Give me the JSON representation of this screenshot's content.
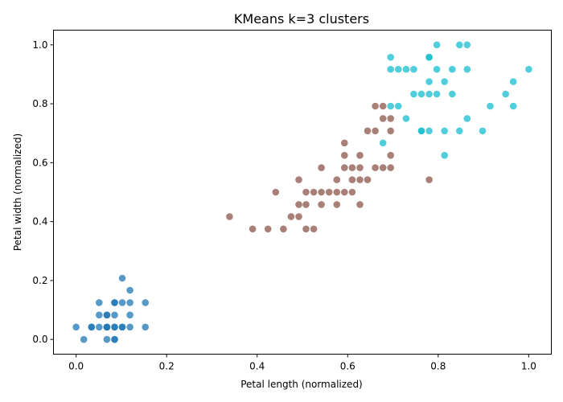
{
  "chart_data": {
    "type": "scatter",
    "title": "KMeans k=3 clusters",
    "xlabel": "Petal length (normalized)",
    "ylabel": "Petal width (normalized)",
    "xlim": [
      -0.05,
      1.05
    ],
    "ylim": [
      -0.05,
      1.05
    ],
    "xticks": [
      "0.0",
      "0.2",
      "0.4",
      "0.6",
      "0.8",
      "1.0"
    ],
    "yticks": [
      "0.0",
      "0.2",
      "0.4",
      "0.6",
      "0.8",
      "1.0"
    ],
    "grid": false,
    "legend": "none",
    "marker_opacity": 0.75,
    "series": [
      {
        "color": "#1f77b4",
        "points": [
          [
            0.0,
            0.042
          ],
          [
            0.017,
            0.0
          ],
          [
            0.034,
            0.042
          ],
          [
            0.034,
            0.042
          ],
          [
            0.051,
            0.042
          ],
          [
            0.051,
            0.083
          ],
          [
            0.051,
            0.125
          ],
          [
            0.068,
            0.0
          ],
          [
            0.068,
            0.042
          ],
          [
            0.068,
            0.042
          ],
          [
            0.068,
            0.083
          ],
          [
            0.068,
            0.083
          ],
          [
            0.085,
            0.0
          ],
          [
            0.085,
            0.042
          ],
          [
            0.085,
            0.042
          ],
          [
            0.085,
            0.083
          ],
          [
            0.085,
            0.125
          ],
          [
            0.085,
            0.125
          ],
          [
            0.085,
            0.0
          ],
          [
            0.102,
            0.042
          ],
          [
            0.102,
            0.125
          ],
          [
            0.102,
            0.208
          ],
          [
            0.102,
            0.042
          ],
          [
            0.119,
            0.042
          ],
          [
            0.119,
            0.083
          ],
          [
            0.119,
            0.125
          ],
          [
            0.119,
            0.167
          ],
          [
            0.153,
            0.042
          ],
          [
            0.153,
            0.125
          ],
          [
            0.068,
            0.042
          ]
        ]
      },
      {
        "color": "#8c564b",
        "points": [
          [
            0.339,
            0.417
          ],
          [
            0.39,
            0.375
          ],
          [
            0.424,
            0.375
          ],
          [
            0.441,
            0.5
          ],
          [
            0.458,
            0.375
          ],
          [
            0.475,
            0.417
          ],
          [
            0.492,
            0.417
          ],
          [
            0.492,
            0.458
          ],
          [
            0.492,
            0.542
          ],
          [
            0.508,
            0.375
          ],
          [
            0.508,
            0.458
          ],
          [
            0.508,
            0.5
          ],
          [
            0.525,
            0.375
          ],
          [
            0.525,
            0.5
          ],
          [
            0.542,
            0.458
          ],
          [
            0.542,
            0.5
          ],
          [
            0.542,
            0.583
          ],
          [
            0.559,
            0.5
          ],
          [
            0.576,
            0.458
          ],
          [
            0.576,
            0.5
          ],
          [
            0.576,
            0.542
          ],
          [
            0.593,
            0.5
          ],
          [
            0.593,
            0.583
          ],
          [
            0.593,
            0.625
          ],
          [
            0.593,
            0.667
          ],
          [
            0.61,
            0.5
          ],
          [
            0.61,
            0.542
          ],
          [
            0.61,
            0.583
          ],
          [
            0.627,
            0.458
          ],
          [
            0.627,
            0.542
          ],
          [
            0.627,
            0.583
          ],
          [
            0.627,
            0.625
          ],
          [
            0.644,
            0.542
          ],
          [
            0.644,
            0.708
          ],
          [
            0.661,
            0.583
          ],
          [
            0.661,
            0.708
          ],
          [
            0.661,
            0.792
          ],
          [
            0.678,
            0.583
          ],
          [
            0.678,
            0.75
          ],
          [
            0.678,
            0.792
          ],
          [
            0.695,
            0.583
          ],
          [
            0.695,
            0.625
          ],
          [
            0.695,
            0.708
          ],
          [
            0.695,
            0.75
          ],
          [
            0.78,
            0.542
          ]
        ]
      },
      {
        "color": "#17becf",
        "points": [
          [
            0.678,
            0.667
          ],
          [
            0.695,
            0.792
          ],
          [
            0.695,
            0.917
          ],
          [
            0.695,
            0.958
          ],
          [
            0.712,
            0.792
          ],
          [
            0.712,
            0.917
          ],
          [
            0.729,
            0.75
          ],
          [
            0.729,
            0.917
          ],
          [
            0.746,
            0.833
          ],
          [
            0.746,
            0.917
          ],
          [
            0.763,
            0.708
          ],
          [
            0.763,
            0.833
          ],
          [
            0.78,
            0.708
          ],
          [
            0.78,
            0.833
          ],
          [
            0.78,
            0.875
          ],
          [
            0.78,
            0.958
          ],
          [
            0.797,
            0.833
          ],
          [
            0.797,
            0.917
          ],
          [
            0.797,
            1.0
          ],
          [
            0.814,
            0.625
          ],
          [
            0.814,
            0.708
          ],
          [
            0.814,
            0.875
          ],
          [
            0.831,
            0.833
          ],
          [
            0.831,
            0.917
          ],
          [
            0.847,
            0.708
          ],
          [
            0.847,
            1.0
          ],
          [
            0.864,
            0.75
          ],
          [
            0.864,
            0.917
          ],
          [
            0.864,
            1.0
          ],
          [
            0.898,
            0.708
          ],
          [
            0.915,
            0.792
          ],
          [
            0.949,
            0.833
          ],
          [
            0.966,
            0.792
          ],
          [
            0.966,
            0.875
          ],
          [
            1.0,
            0.917
          ],
          [
            0.763,
            0.708
          ],
          [
            0.78,
            0.958
          ]
        ]
      }
    ]
  }
}
